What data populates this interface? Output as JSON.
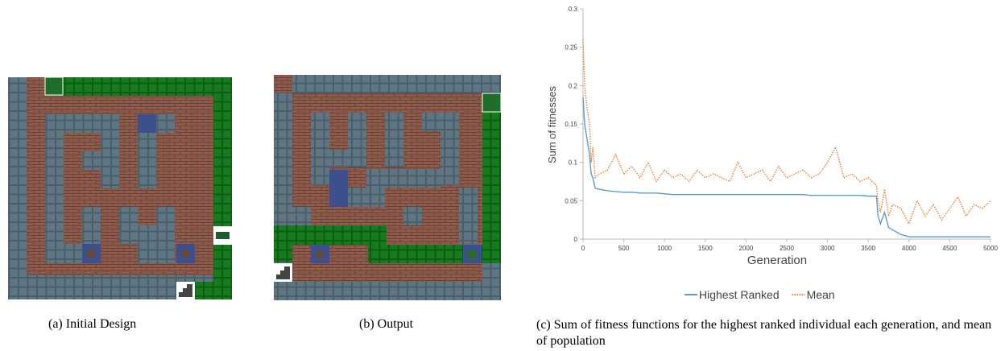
{
  "subfigures": [
    {
      "caption": "(a) Initial Design"
    },
    {
      "caption": "(b) Output"
    },
    {
      "caption": "(c) Sum of fitness functions for the highest ranked individual each generation, and mean of population"
    }
  ],
  "chart_data": {
    "type": "line",
    "xlabel": "Generation",
    "ylabel": "Sum of fitnesses",
    "x": [
      0,
      20,
      50,
      80,
      100,
      120,
      150,
      200,
      300,
      400,
      500,
      600,
      700,
      800,
      900,
      1000,
      1100,
      1200,
      1300,
      1400,
      1500,
      1600,
      1700,
      1800,
      1900,
      2000,
      2100,
      2200,
      2300,
      2400,
      2500,
      2600,
      2700,
      2800,
      2900,
      3000,
      3100,
      3200,
      3300,
      3400,
      3500,
      3600,
      3620,
      3650,
      3700,
      3750,
      3800,
      3900,
      4000,
      4100,
      4200,
      4300,
      4400,
      4500,
      4600,
      4700,
      4800,
      4900,
      5000
    ],
    "series": [
      {
        "name": "Highest Ranked",
        "color": "#5b9bd5",
        "dash": "solid",
        "values": [
          0.185,
          0.15,
          0.13,
          0.11,
          0.085,
          0.08,
          0.066,
          0.065,
          0.063,
          0.062,
          0.061,
          0.061,
          0.06,
          0.06,
          0.06,
          0.059,
          0.058,
          0.058,
          0.058,
          0.058,
          0.058,
          0.058,
          0.058,
          0.058,
          0.058,
          0.058,
          0.058,
          0.058,
          0.058,
          0.058,
          0.058,
          0.058,
          0.058,
          0.057,
          0.057,
          0.057,
          0.057,
          0.057,
          0.057,
          0.057,
          0.056,
          0.056,
          0.03,
          0.02,
          0.035,
          0.015,
          0.012,
          0.006,
          0.003,
          0.003,
          0.003,
          0.003,
          0.003,
          0.003,
          0.003,
          0.003,
          0.003,
          0.003,
          0.003
        ]
      },
      {
        "name": "Mean",
        "color": "#ed7d31",
        "dash": "dotted",
        "values": [
          0.26,
          0.2,
          0.17,
          0.15,
          0.1,
          0.12,
          0.08,
          0.085,
          0.09,
          0.11,
          0.085,
          0.095,
          0.08,
          0.1,
          0.075,
          0.09,
          0.08,
          0.085,
          0.075,
          0.09,
          0.08,
          0.085,
          0.08,
          0.075,
          0.1,
          0.08,
          0.085,
          0.09,
          0.075,
          0.095,
          0.08,
          0.085,
          0.09,
          0.08,
          0.085,
          0.1,
          0.12,
          0.08,
          0.085,
          0.075,
          0.08,
          0.07,
          0.05,
          0.035,
          0.065,
          0.03,
          0.045,
          0.04,
          0.02,
          0.05,
          0.03,
          0.045,
          0.025,
          0.04,
          0.055,
          0.03,
          0.045,
          0.04,
          0.05
        ]
      }
    ],
    "xlim": [
      0,
      5000
    ],
    "xticks": [
      0,
      500,
      1000,
      1500,
      2000,
      2500,
      3000,
      3500,
      4000,
      4500,
      5000
    ],
    "ylim": [
      0,
      0.3
    ],
    "yticks": [
      0,
      0.05,
      0.1,
      0.15,
      0.2,
      0.25,
      0.3
    ],
    "legend": "bottom"
  }
}
